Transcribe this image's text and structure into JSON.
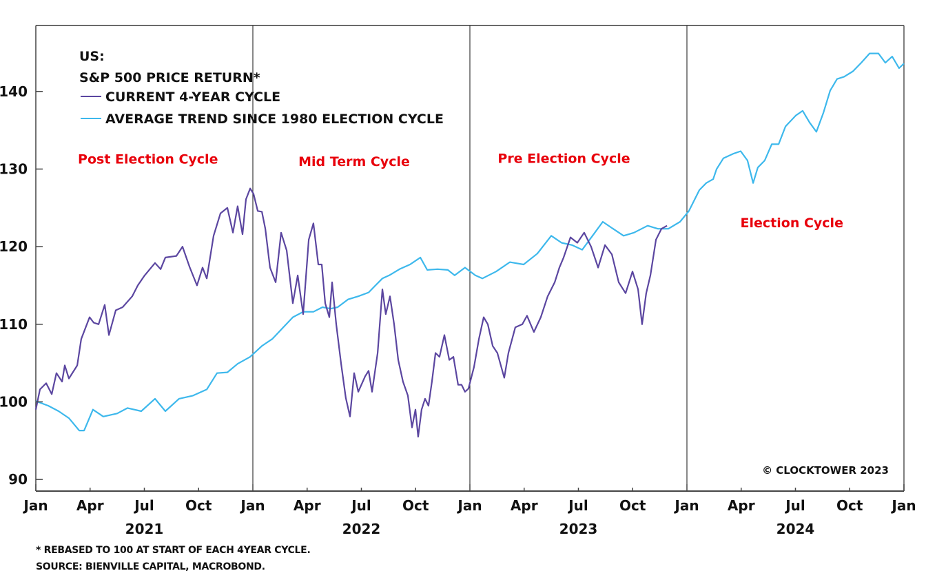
{
  "chart_data": {
    "type": "line",
    "title": "US: S&P 500 PRICE RETURN*",
    "title_lines": [
      "US:",
      "S&P 500 PRICE RETURN*"
    ],
    "xlabel": "",
    "ylabel": "",
    "x_unit": "months since Jan 2021",
    "xlim": [
      0,
      48
    ],
    "ylim": [
      88.5,
      148.5
    ],
    "y_ticks": [
      90,
      100,
      110,
      120,
      130,
      140
    ],
    "x_ticks": [
      {
        "m": 0,
        "label": "Jan"
      },
      {
        "m": 3,
        "label": "Apr"
      },
      {
        "m": 6,
        "label": "Jul"
      },
      {
        "m": 9,
        "label": "Oct"
      },
      {
        "m": 12,
        "label": "Jan"
      },
      {
        "m": 15,
        "label": "Apr"
      },
      {
        "m": 18,
        "label": "Jul"
      },
      {
        "m": 21,
        "label": "Oct"
      },
      {
        "m": 24,
        "label": "Jan"
      },
      {
        "m": 27,
        "label": "Apr"
      },
      {
        "m": 30,
        "label": "Jul"
      },
      {
        "m": 33,
        "label": "Oct"
      },
      {
        "m": 36,
        "label": "Jan"
      },
      {
        "m": 39,
        "label": "Apr"
      },
      {
        "m": 42,
        "label": "Jul"
      },
      {
        "m": 45,
        "label": "Oct"
      },
      {
        "m": 48,
        "label": "Jan"
      }
    ],
    "year_labels": [
      {
        "m": 6,
        "label": "2021"
      },
      {
        "m": 18,
        "label": "2022"
      },
      {
        "m": 30,
        "label": "2023"
      },
      {
        "m": 42,
        "label": "2024"
      }
    ],
    "dividers": [
      12,
      24,
      36
    ],
    "grid": false,
    "legend_position": "top-left",
    "phase_labels": [
      {
        "m": 6.2,
        "value": 130.7,
        "label": "Post Election Cycle"
      },
      {
        "m": 17.6,
        "value": 130.4,
        "label": "Mid Term Cycle"
      },
      {
        "m": 29.2,
        "value": 130.8,
        "label": "Pre Election Cycle"
      },
      {
        "m": 41.8,
        "value": 122.5,
        "label": "Election Cycle"
      }
    ],
    "annotation": "© CLOCKTOWER 2023",
    "series": [
      {
        "name": "CURRENT 4-YEAR CYCLE",
        "color": "#5b46a0",
        "points": [
          [
            0,
            99.0
          ],
          [
            0.23,
            101.6
          ],
          [
            0.57,
            102.4
          ],
          [
            0.88,
            101.0
          ],
          [
            1.14,
            103.7
          ],
          [
            1.45,
            102.6
          ],
          [
            1.6,
            104.7
          ],
          [
            1.83,
            103.0
          ],
          [
            2.29,
            104.7
          ],
          [
            2.51,
            108.1
          ],
          [
            2.97,
            110.9
          ],
          [
            3.2,
            110.2
          ],
          [
            3.47,
            110.0
          ],
          [
            3.81,
            112.5
          ],
          [
            4.04,
            108.6
          ],
          [
            4.42,
            111.8
          ],
          [
            4.8,
            112.2
          ],
          [
            5.33,
            113.6
          ],
          [
            5.64,
            115.0
          ],
          [
            6.02,
            116.3
          ],
          [
            6.59,
            117.9
          ],
          [
            6.9,
            117.1
          ],
          [
            7.16,
            118.6
          ],
          [
            7.77,
            118.8
          ],
          [
            8.11,
            120.0
          ],
          [
            8.5,
            117.4
          ],
          [
            8.91,
            115.0
          ],
          [
            9.22,
            117.3
          ],
          [
            9.45,
            115.9
          ],
          [
            9.83,
            121.4
          ],
          [
            10.21,
            124.3
          ],
          [
            10.59,
            125.0
          ],
          [
            10.9,
            121.8
          ],
          [
            11.16,
            125.2
          ],
          [
            11.43,
            121.6
          ],
          [
            11.62,
            126.1
          ],
          [
            11.85,
            127.5
          ],
          [
            12.04,
            126.8
          ],
          [
            12.27,
            124.6
          ],
          [
            12.5,
            124.5
          ],
          [
            12.69,
            122.3
          ],
          [
            12.95,
            117.3
          ],
          [
            13.26,
            115.4
          ],
          [
            13.56,
            121.8
          ],
          [
            13.87,
            119.5
          ],
          [
            14.21,
            112.7
          ],
          [
            14.48,
            116.3
          ],
          [
            14.78,
            111.3
          ],
          [
            15.09,
            120.9
          ],
          [
            15.35,
            123.0
          ],
          [
            15.62,
            117.7
          ],
          [
            15.81,
            117.7
          ],
          [
            16.0,
            112.7
          ],
          [
            16.23,
            110.9
          ],
          [
            16.38,
            115.4
          ],
          [
            16.61,
            110.0
          ],
          [
            16.88,
            104.9
          ],
          [
            17.14,
            100.5
          ],
          [
            17.37,
            98.1
          ],
          [
            17.6,
            103.7
          ],
          [
            17.83,
            101.3
          ],
          [
            18.21,
            103.3
          ],
          [
            18.4,
            104.0
          ],
          [
            18.59,
            101.3
          ],
          [
            18.9,
            106.3
          ],
          [
            19.16,
            114.5
          ],
          [
            19.35,
            111.3
          ],
          [
            19.58,
            113.6
          ],
          [
            19.81,
            110.0
          ],
          [
            20.04,
            105.4
          ],
          [
            20.3,
            102.6
          ],
          [
            20.57,
            100.8
          ],
          [
            20.8,
            96.7
          ],
          [
            20.99,
            99.0
          ],
          [
            21.14,
            95.5
          ],
          [
            21.33,
            99.0
          ],
          [
            21.52,
            100.4
          ],
          [
            21.71,
            99.5
          ],
          [
            21.9,
            102.6
          ],
          [
            22.1,
            106.3
          ],
          [
            22.32,
            105.8
          ],
          [
            22.59,
            108.6
          ],
          [
            22.86,
            105.4
          ],
          [
            23.09,
            105.8
          ],
          [
            23.35,
            102.2
          ],
          [
            23.54,
            102.2
          ],
          [
            23.73,
            101.3
          ],
          [
            23.92,
            101.7
          ],
          [
            24.23,
            104.5
          ],
          [
            24.5,
            108.1
          ],
          [
            24.76,
            110.9
          ],
          [
            24.99,
            110.0
          ],
          [
            25.26,
            107.2
          ],
          [
            25.52,
            106.3
          ],
          [
            25.9,
            103.1
          ],
          [
            26.13,
            106.3
          ],
          [
            26.51,
            109.6
          ],
          [
            26.9,
            110.0
          ],
          [
            27.16,
            111.1
          ],
          [
            27.54,
            109.0
          ],
          [
            27.92,
            110.9
          ],
          [
            28.3,
            113.6
          ],
          [
            28.69,
            115.4
          ],
          [
            28.95,
            117.3
          ],
          [
            29.18,
            118.6
          ],
          [
            29.56,
            121.2
          ],
          [
            29.94,
            120.5
          ],
          [
            30.32,
            121.8
          ],
          [
            30.7,
            120.0
          ],
          [
            31.09,
            117.3
          ],
          [
            31.47,
            120.2
          ],
          [
            31.85,
            119.0
          ],
          [
            32.23,
            115.4
          ],
          [
            32.61,
            114.0
          ],
          [
            32.99,
            116.8
          ],
          [
            33.3,
            114.5
          ],
          [
            33.52,
            110.0
          ],
          [
            33.75,
            114.0
          ],
          [
            33.98,
            116.3
          ],
          [
            34.29,
            120.9
          ],
          [
            34.59,
            122.3
          ],
          [
            34.9,
            122.7
          ]
        ]
      },
      {
        "name": "AVERAGE TREND SINCE 1980 ELECTION CYCLE",
        "color": "#3db8ec",
        "points": [
          [
            0,
            100.1
          ],
          [
            0.69,
            99.5
          ],
          [
            1.26,
            98.8
          ],
          [
            1.83,
            97.9
          ],
          [
            2.4,
            96.3
          ],
          [
            2.67,
            96.3
          ],
          [
            3.16,
            99.0
          ],
          [
            3.73,
            98.1
          ],
          [
            4.5,
            98.5
          ],
          [
            5.07,
            99.2
          ],
          [
            5.83,
            98.8
          ],
          [
            6.59,
            100.4
          ],
          [
            7.16,
            98.8
          ],
          [
            7.92,
            100.4
          ],
          [
            8.69,
            100.8
          ],
          [
            9.45,
            101.6
          ],
          [
            10.02,
            103.7
          ],
          [
            10.59,
            103.8
          ],
          [
            11.16,
            104.9
          ],
          [
            11.85,
            105.8
          ],
          [
            12.5,
            107.2
          ],
          [
            13.07,
            108.1
          ],
          [
            13.64,
            109.5
          ],
          [
            14.21,
            110.9
          ],
          [
            14.78,
            111.6
          ],
          [
            15.35,
            111.6
          ],
          [
            15.85,
            112.2
          ],
          [
            16.3,
            112.0
          ],
          [
            16.69,
            112.2
          ],
          [
            17.26,
            113.2
          ],
          [
            17.83,
            113.6
          ],
          [
            18.4,
            114.1
          ],
          [
            18.78,
            115.0
          ],
          [
            19.16,
            115.9
          ],
          [
            19.54,
            116.3
          ],
          [
            20.11,
            117.1
          ],
          [
            20.69,
            117.7
          ],
          [
            21.26,
            118.6
          ],
          [
            21.64,
            117.0
          ],
          [
            22.21,
            117.1
          ],
          [
            22.78,
            117.0
          ],
          [
            23.16,
            116.3
          ],
          [
            23.73,
            117.3
          ],
          [
            24.3,
            116.3
          ],
          [
            24.69,
            115.9
          ],
          [
            25.45,
            116.8
          ],
          [
            26.21,
            118.0
          ],
          [
            26.97,
            117.7
          ],
          [
            27.73,
            119.1
          ],
          [
            28.5,
            121.4
          ],
          [
            29.07,
            120.5
          ],
          [
            29.64,
            120.2
          ],
          [
            30.21,
            119.6
          ],
          [
            30.78,
            121.4
          ],
          [
            31.35,
            123.2
          ],
          [
            31.92,
            122.3
          ],
          [
            32.5,
            121.4
          ],
          [
            33.07,
            121.8
          ],
          [
            33.83,
            122.7
          ],
          [
            34.4,
            122.3
          ],
          [
            34.97,
            122.3
          ],
          [
            35.62,
            123.2
          ],
          [
            36.11,
            124.6
          ],
          [
            36.69,
            127.3
          ],
          [
            37.07,
            128.2
          ],
          [
            37.45,
            128.7
          ],
          [
            37.64,
            130.0
          ],
          [
            38.02,
            131.4
          ],
          [
            38.59,
            132.0
          ],
          [
            38.97,
            132.3
          ],
          [
            39.35,
            131.1
          ],
          [
            39.66,
            128.2
          ],
          [
            39.92,
            130.2
          ],
          [
            40.3,
            131.1
          ],
          [
            40.69,
            133.2
          ],
          [
            41.07,
            133.2
          ],
          [
            41.45,
            135.5
          ],
          [
            42.02,
            136.9
          ],
          [
            42.4,
            137.5
          ],
          [
            42.78,
            136.0
          ],
          [
            43.16,
            134.8
          ],
          [
            43.54,
            137.2
          ],
          [
            43.92,
            140.1
          ],
          [
            44.3,
            141.6
          ],
          [
            44.69,
            141.9
          ],
          [
            45.18,
            142.6
          ],
          [
            45.64,
            143.7
          ],
          [
            46.1,
            144.9
          ],
          [
            46.59,
            144.9
          ],
          [
            46.97,
            143.7
          ],
          [
            47.35,
            144.5
          ],
          [
            47.73,
            143.0
          ],
          [
            48,
            143.6
          ]
        ]
      }
    ]
  },
  "footnotes": {
    "line1": "* REBASED TO 100 AT START OF EACH 4YEAR CYCLE.",
    "line2": "SOURCE: BIENVILLE CAPITAL, MACROBOND."
  }
}
